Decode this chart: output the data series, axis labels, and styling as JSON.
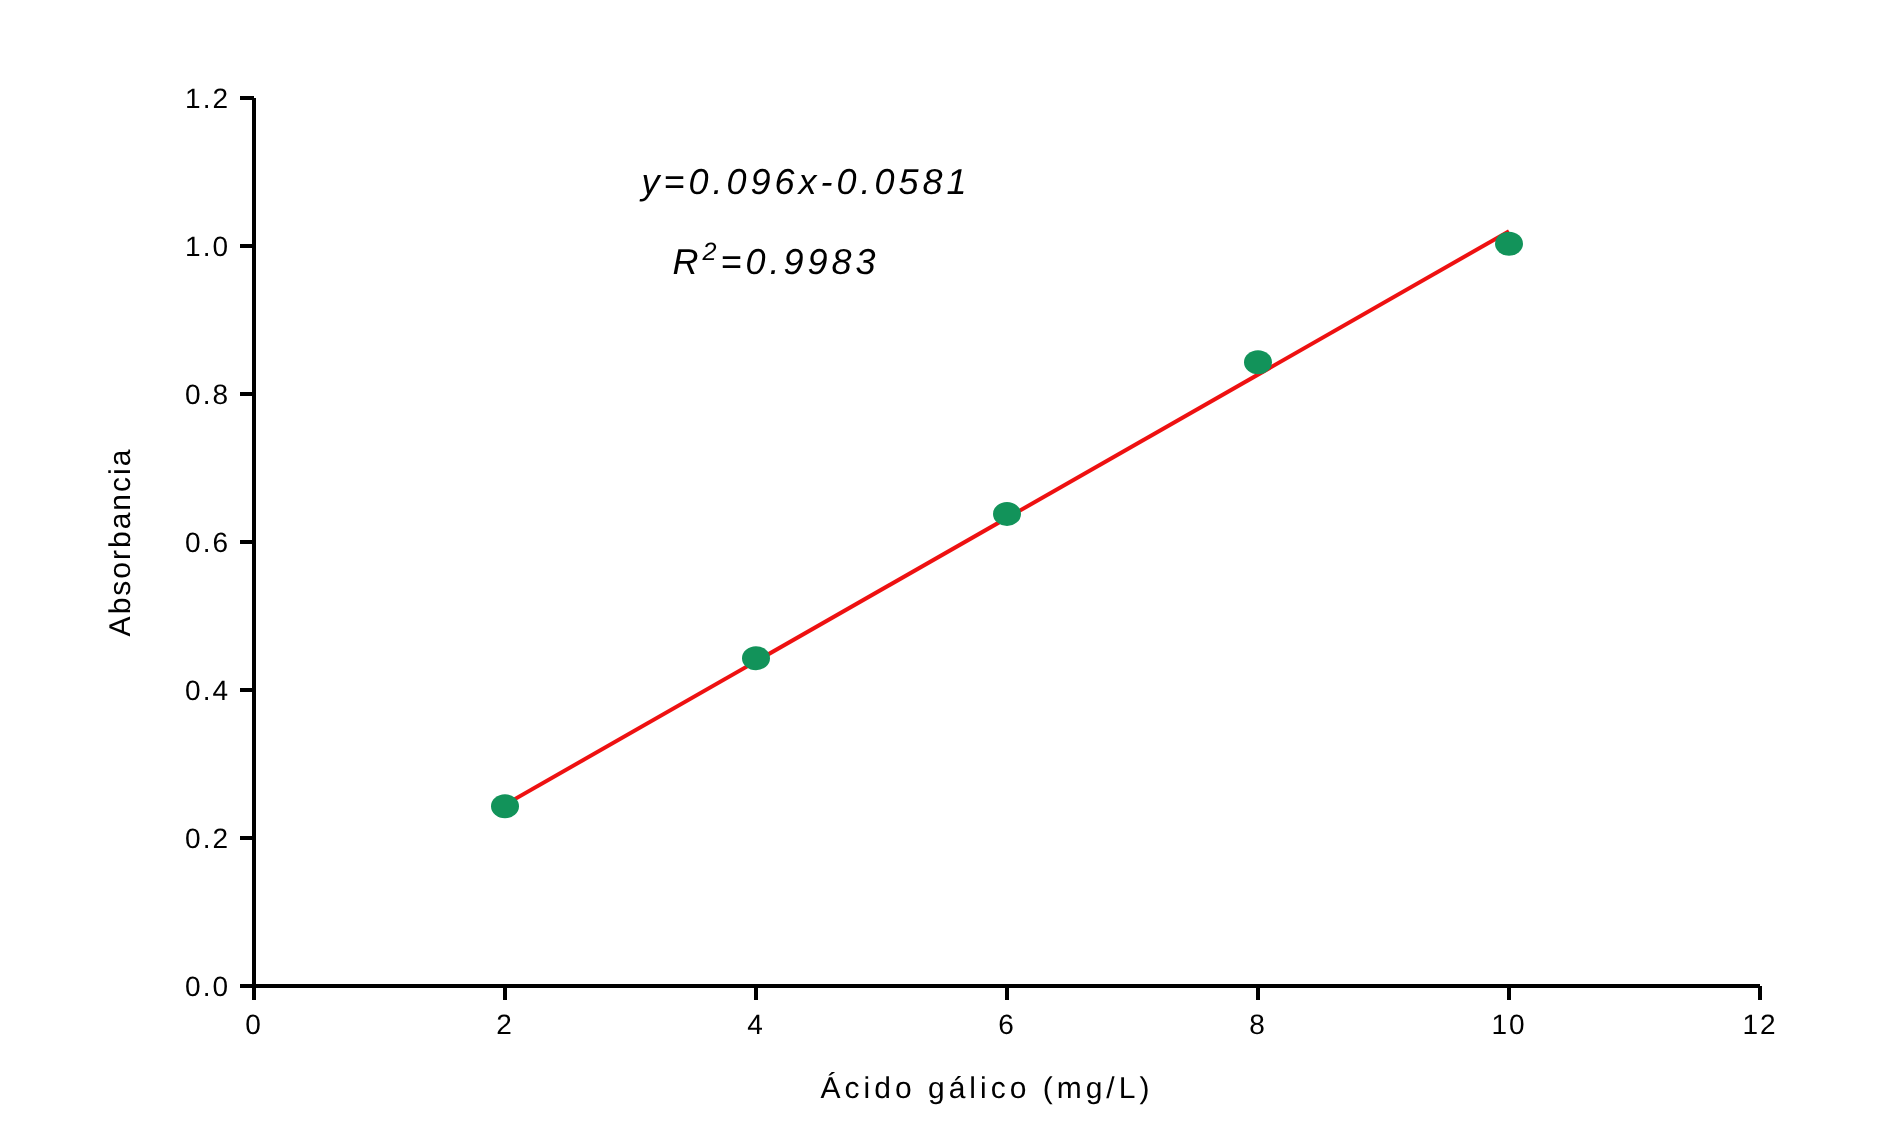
{
  "chart_data": {
    "type": "scatter",
    "xlabel": "Ácido gálico (mg/L)",
    "ylabel": "Absorbancia",
    "annotations": [
      "y=0.096x-0.0581",
      "R$^{2}$=0.9983"
    ],
    "x": [
      2,
      4,
      6,
      8,
      10
    ],
    "series": [
      {
        "color": "#12935a",
        "values": [
          0.243,
          0.443,
          0.638,
          0.843,
          1.003
        ],
        "marker": "circle"
      },
      {
        "type": "line",
        "color": "#ee1111",
        "x": [
          2,
          10
        ],
        "values": [
          0.245,
          1.02
        ],
        "marker": "none",
        "line_style": "solid"
      }
    ],
    "xlim": [
      0,
      12
    ],
    "xticks": [
      0,
      2,
      4,
      6,
      8,
      10,
      12
    ],
    "ylim": [
      0,
      1.2
    ],
    "yticks": [
      {
        "value": 0,
        "label": "0.0"
      },
      {
        "value": 0.2,
        "label": "0.2"
      },
      {
        "value": 0.4,
        "label": "0.4"
      },
      {
        "value": 0.6,
        "label": "0.6"
      },
      {
        "value": 0.8,
        "label": "0.8"
      },
      {
        "value": 1,
        "label": "1.0"
      },
      {
        "value": 1.2,
        "label": "1.2"
      }
    ]
  }
}
